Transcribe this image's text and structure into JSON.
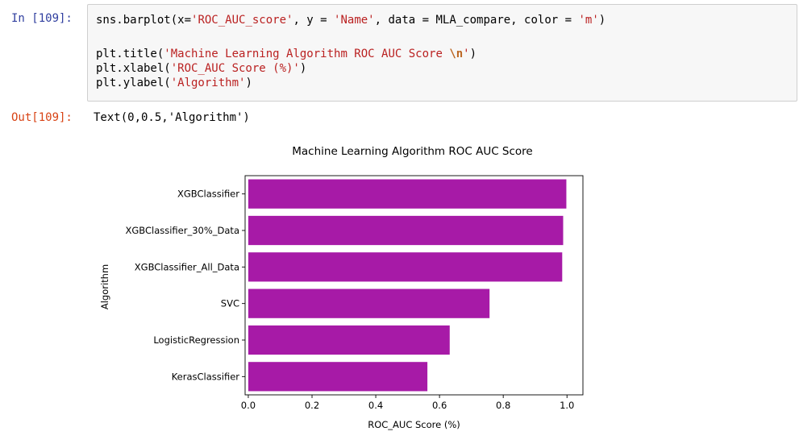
{
  "input_cell": {
    "prompt": "In [109]:",
    "lines": [
      [
        {
          "t": "sns.barplot(x="
        },
        {
          "t": "'ROC_AUC_score'",
          "c": "s"
        },
        {
          "t": ", y = "
        },
        {
          "t": "'Name'",
          "c": "s"
        },
        {
          "t": ", data = MLA_compare, color = "
        },
        {
          "t": "'m'",
          "c": "s"
        },
        {
          "t": ")"
        }
      ],
      [],
      [
        {
          "t": "plt.title("
        },
        {
          "t": "'Machine Learning Algorithm ROC AUC Score ",
          "c": "s"
        },
        {
          "t": "\\n",
          "c": "esc"
        },
        {
          "t": "'",
          "c": "s"
        },
        {
          "t": ")"
        }
      ],
      [
        {
          "t": "plt.xlabel("
        },
        {
          "t": "'ROC_AUC Score (%)'",
          "c": "s"
        },
        {
          "t": ")"
        }
      ],
      [
        {
          "t": "plt.ylabel("
        },
        {
          "t": "'Algorithm'",
          "c": "s"
        },
        {
          "t": ")"
        }
      ]
    ]
  },
  "output_cell": {
    "prompt": "Out[109]:",
    "text": "Text(0,0.5,'Algorithm')"
  },
  "colors": {
    "bar": "#a71aa7",
    "in_prompt": "#303f9f",
    "out_prompt": "#d84315",
    "string": "#ba2121"
  },
  "chart_data": {
    "type": "bar",
    "orientation": "horizontal",
    "title": "Machine Learning Algorithm ROC AUC Score",
    "xlabel": "ROC_AUC Score (%)",
    "ylabel": "Algorithm",
    "categories": [
      "XGBClassifier",
      "XGBClassifier_30%_Data",
      "XGBClassifier_All_Data",
      "SVC",
      "LogisticRegression",
      "KerasClassifier"
    ],
    "values": [
      0.998,
      0.988,
      0.985,
      0.757,
      0.632,
      0.562
    ],
    "xlim": [
      -0.01,
      1.05
    ],
    "xticks": [
      "0.0",
      "0.2",
      "0.4",
      "0.6",
      "0.8",
      "1.0"
    ],
    "grid": false,
    "legend": "none"
  }
}
